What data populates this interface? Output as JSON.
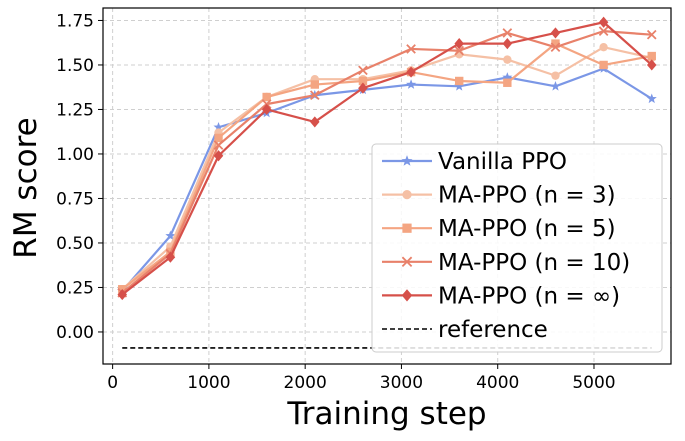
{
  "chart_data": {
    "type": "line",
    "title": "",
    "xlabel": "Training step",
    "ylabel": "RM score",
    "xlim": [
      -100,
      5800
    ],
    "ylim": [
      -0.18,
      1.82
    ],
    "xticks": [
      0,
      1000,
      2000,
      3000,
      4000,
      5000
    ],
    "xtick_labels": [
      "0",
      "1000",
      "2000",
      "3000",
      "4000",
      "5000"
    ],
    "yticks": [
      0.0,
      0.25,
      0.5,
      0.75,
      1.0,
      1.25,
      1.5,
      1.75
    ],
    "ytick_labels": [
      "0.00",
      "0.25",
      "0.50",
      "0.75",
      "1.00",
      "1.25",
      "1.50",
      "1.75"
    ],
    "grid": true,
    "legend_position": "lower-right",
    "x": [
      100,
      600,
      1100,
      1600,
      2100,
      2600,
      3100,
      3600,
      4100,
      4600,
      5100,
      5600
    ],
    "series": [
      {
        "name": "Vanilla PPO",
        "color": "#7b97e6",
        "marker": "star",
        "values": [
          0.23,
          0.54,
          1.15,
          1.23,
          1.33,
          1.36,
          1.39,
          1.38,
          1.43,
          1.38,
          1.48,
          1.31
        ]
      },
      {
        "name": "MA-PPO (n = 3)",
        "color": "#f5c0a5",
        "marker": "circle",
        "values": [
          0.24,
          0.48,
          1.12,
          1.32,
          1.42,
          1.42,
          1.47,
          1.56,
          1.53,
          1.44,
          1.6,
          1.54
        ]
      },
      {
        "name": "MA-PPO (n = 5)",
        "color": "#f4a582",
        "marker": "square",
        "values": [
          0.24,
          0.45,
          1.09,
          1.32,
          1.39,
          1.41,
          1.46,
          1.41,
          1.4,
          1.62,
          1.5,
          1.55
        ]
      },
      {
        "name": "MA-PPO (n = 10)",
        "color": "#e8816a",
        "marker": "x",
        "values": [
          0.22,
          0.44,
          1.05,
          1.28,
          1.33,
          1.47,
          1.59,
          1.58,
          1.68,
          1.6,
          1.69,
          1.67
        ]
      },
      {
        "name": "MA-PPO (n = ∞)",
        "color": "#d6504a",
        "marker": "diamond",
        "values": [
          0.21,
          0.42,
          0.99,
          1.25,
          1.18,
          1.37,
          1.46,
          1.62,
          1.62,
          1.68,
          1.74,
          1.5
        ]
      }
    ],
    "reference": {
      "name": "reference",
      "value": -0.09,
      "x_range": [
        100,
        5600
      ],
      "color": "#000000",
      "style": "dashed"
    }
  }
}
